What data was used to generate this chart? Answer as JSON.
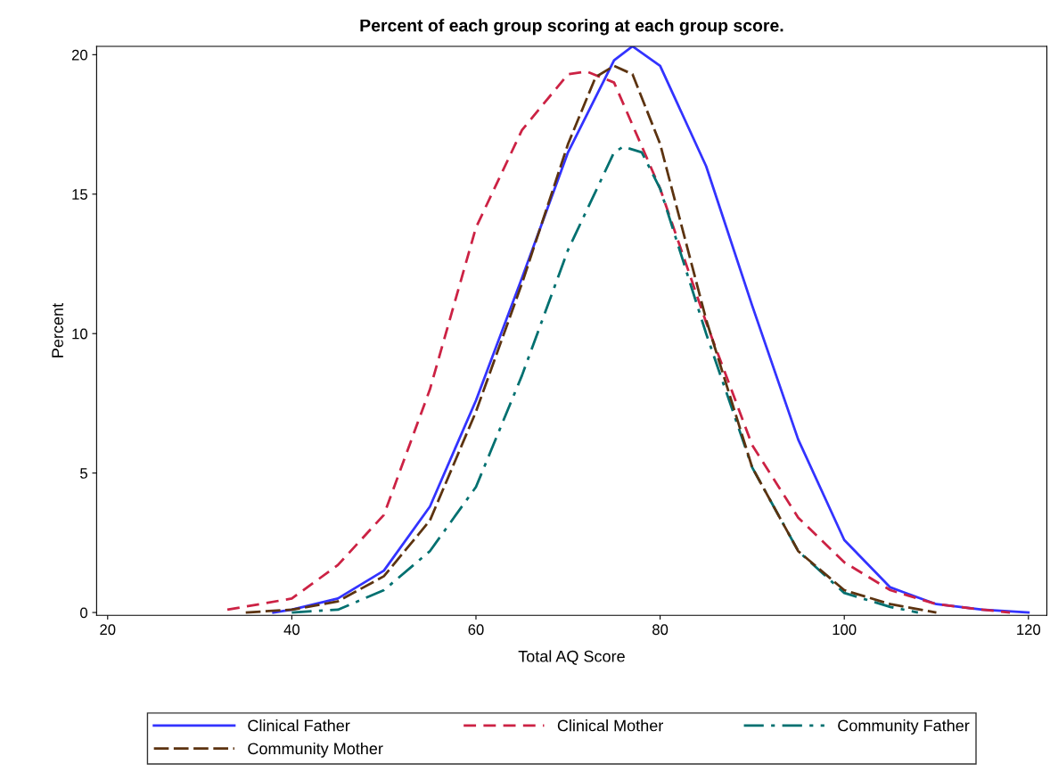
{
  "chart_data": {
    "type": "line",
    "title": "Percent of each group scoring at each group score.",
    "xlabel": "Total AQ Score",
    "ylabel": "Percent",
    "xlim": [
      18.8,
      122
    ],
    "ylim": [
      -0.1,
      20.3
    ],
    "xticks": [
      20,
      40,
      60,
      80,
      100,
      120
    ],
    "yticks": [
      0,
      5,
      10,
      15,
      20
    ],
    "grid": false,
    "legend": "bottom",
    "marker": "none",
    "series": [
      {
        "name": "Clinical Father",
        "color": "#3333ff",
        "line_style": "solid",
        "x": [
          38,
          40,
          45,
          50,
          55,
          60,
          65,
          70,
          75,
          77,
          80,
          85,
          90,
          95,
          100,
          105,
          110,
          115,
          120
        ],
        "values": [
          0,
          0.1,
          0.5,
          1.5,
          3.8,
          7.6,
          12,
          16.5,
          19.8,
          20.3,
          19.6,
          16,
          11,
          6.2,
          2.6,
          0.9,
          0.3,
          0.1,
          0
        ]
      },
      {
        "name": "Clinical Mother",
        "color": "#cc2244",
        "line_style": "dashed",
        "x": [
          33,
          40,
          45,
          50,
          55,
          60,
          65,
          70,
          72,
          75,
          80,
          85,
          90,
          95,
          100,
          105,
          110,
          115,
          118
        ],
        "values": [
          0.1,
          0.5,
          1.7,
          3.5,
          8,
          13.8,
          17.3,
          19.3,
          19.4,
          19,
          15.2,
          10.4,
          6,
          3.4,
          1.8,
          0.8,
          0.3,
          0.1,
          0
        ]
      },
      {
        "name": "Community Father",
        "color": "#007070",
        "line_style": "dashdot",
        "x": [
          40,
          45,
          50,
          55,
          60,
          65,
          70,
          75,
          76,
          78,
          80,
          85,
          90,
          95,
          100,
          105,
          108
        ],
        "values": [
          0,
          0.1,
          0.8,
          2.2,
          4.5,
          8.5,
          13,
          16.5,
          16.7,
          16.5,
          15.2,
          10,
          5.2,
          2.2,
          0.7,
          0.2,
          0
        ]
      },
      {
        "name": "Community Mother",
        "color": "#5c3310",
        "line_style": "longdash",
        "x": [
          35,
          40,
          45,
          50,
          55,
          60,
          65,
          70,
          73,
          75,
          77,
          80,
          85,
          90,
          95,
          100,
          105,
          110
        ],
        "values": [
          0,
          0.1,
          0.4,
          1.3,
          3.3,
          7.2,
          11.8,
          16.8,
          19.2,
          19.6,
          19.3,
          16.8,
          10.5,
          5.2,
          2.2,
          0.8,
          0.3,
          0
        ]
      }
    ]
  }
}
